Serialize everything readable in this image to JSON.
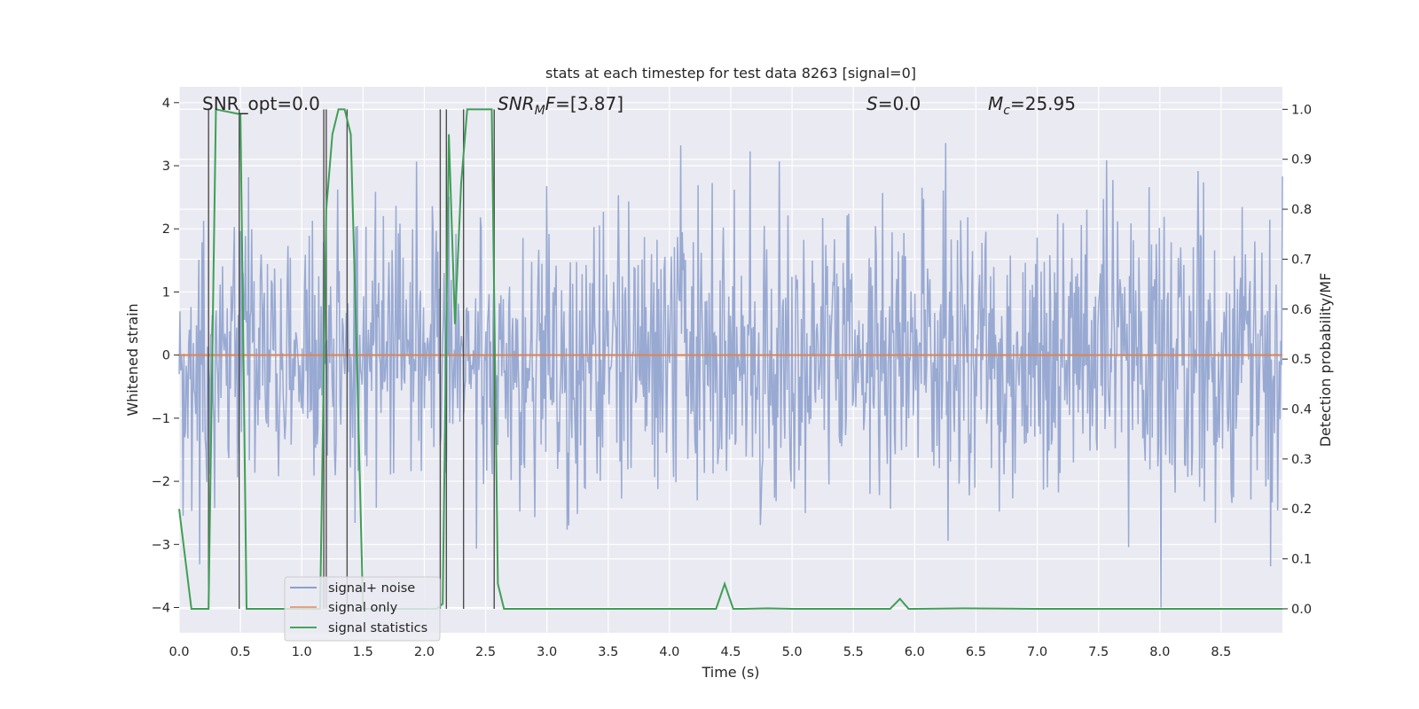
{
  "chart_data": {
    "type": "line",
    "title": "stats at each timestep for test data 8263 [signal=0]",
    "xlabel": "Time (s)",
    "ylabel_left": "Whitened strain",
    "ylabel_right": "Detection probability/MF",
    "xlim": [
      0.0,
      9.0
    ],
    "ylim_left": [
      -4.4,
      4.25
    ],
    "ylim_right": [
      -0.048,
      1.045
    ],
    "x_ticks": [
      "0.0",
      "0.5",
      "1.0",
      "1.5",
      "2.0",
      "2.5",
      "3.0",
      "3.5",
      "4.0",
      "4.5",
      "5.0",
      "5.5",
      "6.0",
      "6.5",
      "7.0",
      "7.5",
      "8.0",
      "8.5"
    ],
    "x_tick_values": [
      0,
      0.5,
      1,
      1.5,
      2,
      2.5,
      3,
      3.5,
      4,
      4.5,
      5,
      5.5,
      6,
      6.5,
      7,
      7.5,
      8,
      8.5
    ],
    "y_ticks_left": [
      "−4",
      "−3",
      "−2",
      "−1",
      "0",
      "1",
      "2",
      "3",
      "4"
    ],
    "y_tick_values_left": [
      -4,
      -3,
      -2,
      -1,
      0,
      1,
      2,
      3,
      4
    ],
    "y_ticks_right": [
      "0.0",
      "0.1",
      "0.2",
      "0.3",
      "0.4",
      "0.5",
      "0.6",
      "0.7",
      "0.8",
      "0.9",
      "1.0"
    ],
    "y_tick_values_right": [
      0,
      0.1,
      0.2,
      0.3,
      0.4,
      0.5,
      0.6,
      0.7,
      0.8,
      0.9,
      1.0
    ],
    "annotations": {
      "snr_opt": {
        "prefix": "SNR_opt=",
        "value": "0.0"
      },
      "snr_mf": {
        "sym": "SNR",
        "sub": "M",
        "tail": "F=",
        "value": "[3.87]"
      },
      "s": {
        "sym": "S",
        "tail": "=",
        "value": "0.0"
      },
      "mc": {
        "sym": "M",
        "sub": "c",
        "tail": "=",
        "value": "25.95"
      }
    },
    "legend": {
      "position": "lower-left",
      "entries": [
        {
          "label": "signal+ noise",
          "color": "#8da0cb"
        },
        {
          "label": "signal only",
          "color": "#e5a17e"
        },
        {
          "label": "signal statistics",
          "color": "#4aa35c"
        }
      ]
    },
    "series": [
      {
        "name": "signal+ noise",
        "axis": "left",
        "color": "#8fa2ce",
        "kind": "whitened noise, approx. unit variance, range about -4 to 3.9",
        "sample_count": 1400,
        "x_range": [
          0.0,
          9.0
        ]
      },
      {
        "name": "signal only",
        "axis": "left",
        "color": "#dd8452",
        "x": [
          0.0,
          9.0
        ],
        "y": [
          0.0,
          0.0
        ]
      },
      {
        "name": "signal statistics",
        "axis": "right",
        "color": "#3f9f55",
        "x": [
          0.0,
          0.05,
          0.1,
          0.15,
          0.2,
          0.24,
          0.3,
          0.5,
          0.55,
          0.6,
          0.7,
          0.8,
          1.0,
          1.15,
          1.2,
          1.25,
          1.3,
          1.35,
          1.4,
          1.45,
          1.5,
          1.6,
          2.0,
          2.1,
          2.15,
          2.2,
          2.25,
          2.3,
          2.35,
          2.4,
          2.5,
          2.55,
          2.6,
          2.65,
          2.7,
          3.0,
          3.5,
          4.0,
          4.38,
          4.45,
          4.52,
          4.6,
          4.8,
          5.0,
          5.5,
          5.8,
          5.88,
          5.95,
          6.0,
          6.4,
          7.0,
          8.0,
          9.0
        ],
        "y": [
          0.2,
          0.1,
          0.0,
          0.0,
          0.0,
          0.0,
          1.0,
          0.99,
          0.0,
          0.0,
          0.0,
          0.0,
          0.0,
          0.0,
          0.8,
          0.95,
          1.0,
          1.0,
          0.95,
          0.5,
          0.0,
          0.0,
          0.0,
          0.0,
          0.01,
          0.95,
          0.57,
          0.85,
          1.0,
          1.0,
          1.0,
          1.0,
          0.05,
          0.0,
          0.0,
          0.0,
          0.0,
          0.0,
          0.0,
          0.05,
          0.0,
          0.0,
          0.001,
          0.0,
          0.0,
          0.0,
          0.02,
          0.0,
          0.0,
          0.001,
          0.0,
          0.0,
          0.0
        ]
      }
    ],
    "vertical_lines_x": [
      0.24,
      0.49,
      1.18,
      1.2,
      1.37,
      2.13,
      2.18,
      2.32,
      2.57
    ]
  }
}
